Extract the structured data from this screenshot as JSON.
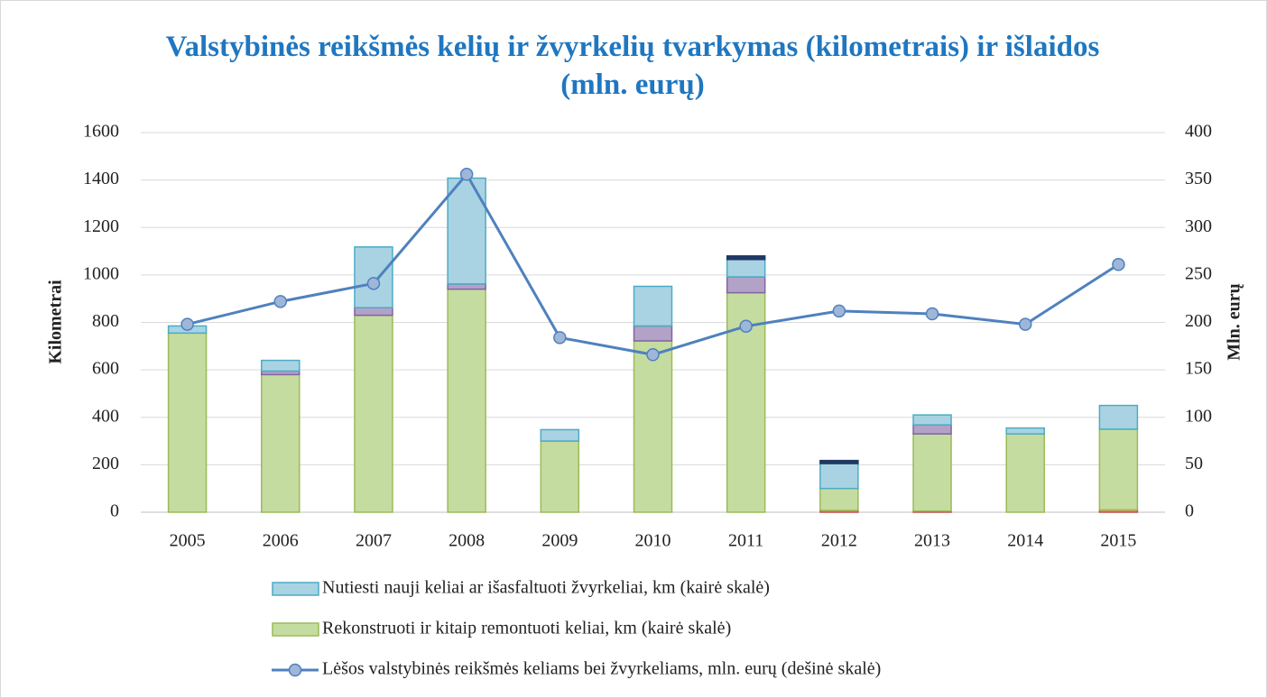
{
  "chart_data": {
    "type": "bar",
    "stacked": true,
    "title": "Valstybinės reikšmės kelių ir žvyrkelių tvarkymas (kilometrais) ir išlaidos (mln. eurų)",
    "ylabel": "Kilometrai",
    "y2label": "Mln. eurų",
    "categories": [
      "2005",
      "2006",
      "2007",
      "2008",
      "2009",
      "2010",
      "2011",
      "2012",
      "2013",
      "2014",
      "2015"
    ],
    "ylim": [
      0,
      1600
    ],
    "yticks": [
      0,
      200,
      400,
      600,
      800,
      1000,
      1200,
      1400,
      1600
    ],
    "y2lim": [
      0,
      400
    ],
    "y2ticks": [
      0,
      50,
      100,
      150,
      200,
      250,
      300,
      350,
      400
    ],
    "grid": true,
    "series": [
      {
        "color": "#e59a5b",
        "values": [
          0,
          0,
          0,
          0,
          0,
          0,
          0,
          8,
          5,
          0,
          10
        ]
      },
      {
        "name": "Rekonstruoti ir kitaip remontuoti keliai, km (kairė skalė)",
        "color": "#c5dca0",
        "values": [
          755,
          580,
          830,
          940,
          300,
          722,
          925,
          92,
          325,
          330,
          340
        ]
      },
      {
        "color": "#b3a2c7",
        "values": [
          0,
          15,
          32,
          22,
          0,
          63,
          67,
          0,
          38,
          0,
          0
        ]
      },
      {
        "name": "Nutiesti nauji keliai ar išasfaltuoti žvyrkeliai, km (kairė skalė)",
        "color": "#a9d3e3",
        "values": [
          30,
          45,
          256,
          446,
          48,
          167,
          73,
          105,
          42,
          25,
          100
        ]
      },
      {
        "color": "#1f3864",
        "values": [
          0,
          0,
          0,
          0,
          0,
          0,
          15,
          13,
          0,
          0,
          0
        ]
      },
      {
        "name": "Lėšos valstybinės reikšmės keliams bei žvyrkeliams, mln. eurų (dešinė skalė)",
        "type": "line",
        "axis": "y2",
        "color": "#4f81bd",
        "values": [
          198,
          222,
          241,
          356,
          184,
          166,
          196,
          212,
          209,
          198,
          261
        ]
      }
    ]
  }
}
